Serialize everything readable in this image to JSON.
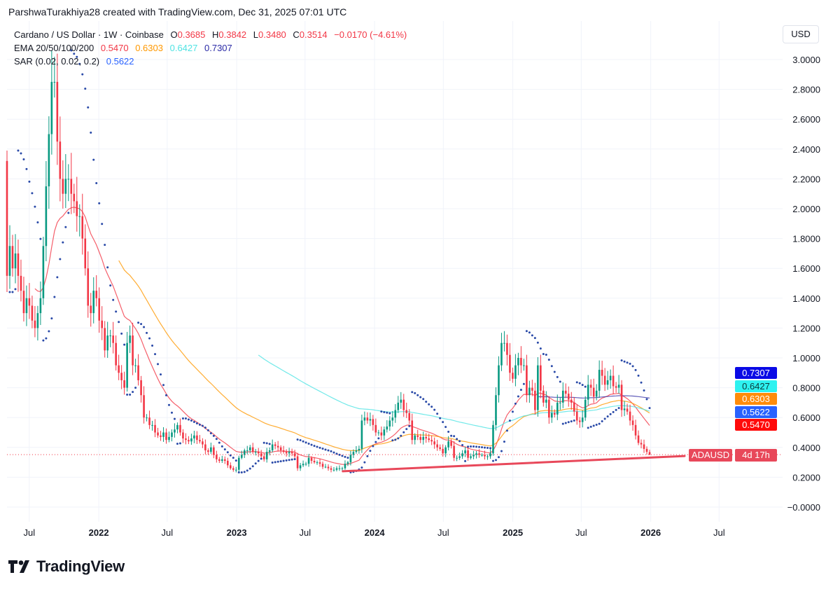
{
  "attribution": "ParshwaTurakhiya28 created with TradingView.com, Dec 31, 2025 07:01 UTC",
  "legend": {
    "symbol": "Cardano / US Dollar · 1W · Coinbase",
    "ohlc": {
      "o_label": "O",
      "o": "0.3685",
      "h_label": "H",
      "h": "0.3842",
      "l_label": "L",
      "l": "0.3480",
      "c_label": "C",
      "c": "0.3514",
      "change": "−0.0170 (−4.61%)"
    },
    "ema": {
      "label": "EMA 20/50/100/200",
      "v20": "0.5470",
      "v50": "0.6303",
      "v100": "0.6427",
      "v200": "0.7307"
    },
    "sar": {
      "label": "SAR (0.02, 0.02, 0.2)",
      "value": "0.5622"
    }
  },
  "currency": "USD",
  "badges": [
    {
      "name": "ema200",
      "value": "0.7307",
      "color": "#0a0ae6",
      "text": "#ffffff"
    },
    {
      "name": "ema100",
      "value": "0.6427",
      "color": "#2ef2f0",
      "text": "#0b3b3b"
    },
    {
      "name": "ema50",
      "value": "0.6303",
      "color": "#ff8c0a",
      "text": "#ffffff"
    },
    {
      "name": "sar",
      "value": "0.5622",
      "color": "#2962ff",
      "text": "#ffffff"
    },
    {
      "name": "ema20",
      "value": "0.5470",
      "color": "#ff0a0a",
      "text": "#ffffff"
    }
  ],
  "countdown": {
    "symbol": "ADAUSD",
    "time": "4d 17h"
  },
  "footer": {
    "brand": "TradingView"
  },
  "chart_data": {
    "type": "candlestick",
    "interval": "1W",
    "start": "2021-05-03",
    "end": "2025-12-29",
    "ylim": [
      -0.1,
      3.1
    ],
    "yticks": [
      3.0,
      2.8,
      2.6,
      2.4,
      2.2,
      2.0,
      1.8,
      1.6,
      1.4,
      1.2,
      1.0,
      0.8,
      0.6,
      0.4,
      0.2,
      0.0
    ],
    "ytick_labels": [
      "3.0000",
      "2.8000",
      "2.6000",
      "2.4000",
      "2.2000",
      "2.0000",
      "1.8000",
      "1.6000",
      "1.4000",
      "1.2000",
      "1.0000",
      "0.8000",
      "0.6000",
      "0.4000",
      "0.2000",
      "−0.0000"
    ],
    "xticks": [
      {
        "label": "Jul",
        "date": "2021-07-01",
        "bold": false
      },
      {
        "label": "2022",
        "date": "2022-01-01",
        "bold": true
      },
      {
        "label": "Jul",
        "date": "2022-07-01",
        "bold": false
      },
      {
        "label": "2023",
        "date": "2023-01-01",
        "bold": true
      },
      {
        "label": "Jul",
        "date": "2023-07-01",
        "bold": false
      },
      {
        "label": "2024",
        "date": "2024-01-01",
        "bold": true
      },
      {
        "label": "Jul",
        "date": "2024-07-01",
        "bold": false
      },
      {
        "label": "2025",
        "date": "2025-01-01",
        "bold": true
      },
      {
        "label": "Jul",
        "date": "2025-07-01",
        "bold": false
      },
      {
        "label": "2026",
        "date": "2026-01-01",
        "bold": true
      },
      {
        "label": "Jul",
        "date": "2026-07-01",
        "bold": false
      }
    ],
    "grid": true,
    "first_open": 2.32,
    "last_candle": {
      "open": 0.3685,
      "high": 0.3842,
      "low": 0.348,
      "close": 0.3514
    },
    "closes": [
      1.55,
      1.75,
      1.6,
      1.7,
      1.55,
      1.45,
      1.3,
      1.4,
      1.35,
      1.25,
      1.2,
      1.3,
      1.4,
      1.75,
      2.15,
      2.5,
      2.85,
      2.85,
      2.45,
      2.2,
      2.1,
      2.2,
      2.2,
      2.1,
      2.05,
      1.95,
      1.95,
      1.8,
      1.6,
      1.35,
      1.3,
      1.45,
      1.4,
      1.25,
      1.2,
      1.05,
      1.15,
      1.15,
      1.1,
      0.95,
      0.9,
      0.85,
      0.8,
      1.1,
      1.15,
      0.95,
      0.95,
      0.85,
      0.75,
      0.6,
      0.6,
      0.55,
      0.55,
      0.5,
      0.48,
      0.47,
      0.5,
      0.45,
      0.47,
      0.5,
      0.52,
      0.55,
      0.5,
      0.46,
      0.45,
      0.44,
      0.46,
      0.48,
      0.45,
      0.44,
      0.42,
      0.38,
      0.37,
      0.4,
      0.35,
      0.32,
      0.31,
      0.32,
      0.31,
      0.28,
      0.26,
      0.25,
      0.25,
      0.33,
      0.35,
      0.38,
      0.38,
      0.4,
      0.37,
      0.37,
      0.36,
      0.34,
      0.32,
      0.37,
      0.38,
      0.42,
      0.41,
      0.4,
      0.38,
      0.37,
      0.36,
      0.37,
      0.36,
      0.34,
      0.26,
      0.28,
      0.29,
      0.29,
      0.33,
      0.31,
      0.3,
      0.3,
      0.29,
      0.27,
      0.27,
      0.26,
      0.25,
      0.25,
      0.26,
      0.26,
      0.26,
      0.29,
      0.3,
      0.35,
      0.37,
      0.38,
      0.39,
      0.58,
      0.6,
      0.58,
      0.59,
      0.55,
      0.5,
      0.5,
      0.48,
      0.52,
      0.54,
      0.58,
      0.6,
      0.65,
      0.7,
      0.72,
      0.65,
      0.63,
      0.58,
      0.45,
      0.48,
      0.47,
      0.45,
      0.47,
      0.46,
      0.45,
      0.44,
      0.42,
      0.4,
      0.39,
      0.36,
      0.4,
      0.44,
      0.41,
      0.33,
      0.33,
      0.34,
      0.36,
      0.38,
      0.33,
      0.34,
      0.35,
      0.36,
      0.35,
      0.35,
      0.34,
      0.34,
      0.36,
      0.55,
      0.75,
      0.95,
      1.1,
      1.1,
      1.02,
      0.9,
      0.86,
      0.95,
      1.0,
      0.95,
      0.95,
      0.75,
      0.8,
      0.78,
      0.65,
      0.95,
      0.78,
      0.7,
      0.72,
      0.6,
      0.63,
      0.62,
      0.7,
      0.7,
      0.78,
      0.76,
      0.72,
      0.7,
      0.64,
      0.58,
      0.57,
      0.6,
      0.72,
      0.82,
      0.8,
      0.74,
      0.78,
      0.92,
      0.88,
      0.82,
      0.85,
      0.88,
      0.81,
      0.8,
      0.82,
      0.65,
      0.66,
      0.64,
      0.58,
      0.55,
      0.48,
      0.43,
      0.42,
      0.39,
      0.37,
      0.3514
    ],
    "indicators": {
      "ema": [
        {
          "period": 20,
          "color": "#f23645",
          "last": 0.547
        },
        {
          "period": 50,
          "color": "#ff9800",
          "last": 0.6303
        },
        {
          "period": 100,
          "color": "#4fe3e3",
          "last": 0.6427
        },
        {
          "period": 200,
          "color": "#3a35a8",
          "last": 0.7307
        }
      ],
      "sar": {
        "start": 0.02,
        "increment": 0.02,
        "max": 0.2,
        "color": "#2a4aa8",
        "last": 0.5622
      }
    },
    "current_price": 0.3514,
    "trendline": {
      "color": "#e8485a",
      "from": {
        "date": "2023-10-09",
        "value": 0.24
      },
      "to": {
        "date": "2026-08-10",
        "value": 0.357
      }
    }
  }
}
